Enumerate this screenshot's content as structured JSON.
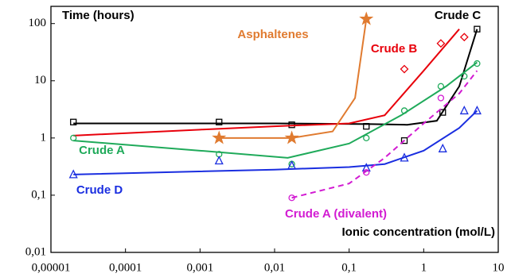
{
  "chart_data": {
    "type": "scatter",
    "y_title": "Time (hours)",
    "x_title": "Ionic concentration (mol/L)",
    "x_log": true,
    "y_log": true,
    "xlim": [
      1e-05,
      10
    ],
    "ylim": [
      0.01,
      200
    ],
    "xticks": [
      {
        "value": 1e-05,
        "label": "0,00001"
      },
      {
        "value": 0.0001,
        "label": "0,0001"
      },
      {
        "value": 0.001,
        "label": "0,001"
      },
      {
        "value": 0.01,
        "label": "0,01"
      },
      {
        "value": 0.1,
        "label": "0,1"
      },
      1,
      10
    ],
    "yticks": [
      {
        "value": 0.01,
        "label": "0,01"
      },
      {
        "value": 0.1,
        "label": "0,1"
      },
      1,
      10,
      100
    ],
    "series": [
      {
        "name": "Crude C",
        "color": "#000000",
        "marker": "square",
        "x": [
          2e-05,
          0.0018,
          0.017,
          0.17,
          0.55,
          1.8,
          5.2
        ],
        "values": [
          1.9,
          1.9,
          1.7,
          1.6,
          0.9,
          2.8,
          80
        ],
        "fit_x": [
          2e-05,
          0.01,
          0.2,
          0.6,
          1.5,
          3,
          5.2
        ],
        "fit_values": [
          1.8,
          1.8,
          1.75,
          1.7,
          2,
          8,
          80
        ]
      },
      {
        "name": "Crude B",
        "color": "#e8000b",
        "marker": "diamond",
        "x": [
          0.55,
          1.7,
          3.5
        ],
        "values": [
          16,
          45,
          58
        ],
        "fit_x": [
          2e-05,
          0.001,
          0.01,
          0.1,
          0.3,
          1,
          3
        ],
        "fit_values": [
          1.1,
          1.4,
          1.6,
          1.8,
          2.5,
          15,
          80
        ]
      },
      {
        "name": "Asphaltenes",
        "color": "#e07b30",
        "marker": "star",
        "x": [
          0.0018,
          0.017,
          0.17
        ],
        "values": [
          1,
          1,
          120
        ],
        "fit_x": [
          0.0018,
          0.017,
          0.06,
          0.12,
          0.17
        ],
        "fit_values": [
          1,
          1,
          1.3,
          5,
          120
        ]
      },
      {
        "name": "Crude A",
        "color": "#1faa5a",
        "marker": "circle",
        "x": [
          2e-05,
          0.0018,
          0.017,
          0.17,
          0.55,
          1.7,
          3.5,
          5.2
        ],
        "values": [
          1,
          0.52,
          0.35,
          1,
          3,
          8,
          12,
          20
        ],
        "fit_x": [
          2e-05,
          0.001,
          0.015,
          0.1,
          0.5,
          2,
          5.2
        ],
        "fit_values": [
          0.9,
          0.6,
          0.45,
          0.8,
          2.5,
          8,
          21
        ]
      },
      {
        "name": "Crude D",
        "color": "#1a2ee0",
        "marker": "triangle",
        "x": [
          2e-05,
          0.0018,
          0.017,
          0.17,
          0.55,
          1.8,
          3.5,
          5.2
        ],
        "values": [
          0.23,
          0.4,
          0.33,
          0.3,
          0.45,
          0.65,
          3,
          3
        ],
        "fit_x": [
          2e-05,
          0.01,
          0.1,
          0.3,
          1,
          3,
          5.2
        ],
        "fit_values": [
          0.23,
          0.28,
          0.31,
          0.35,
          0.6,
          1.5,
          3
        ]
      },
      {
        "name": "Crude A (divalent)",
        "color": "#d21bd2",
        "marker": "circle",
        "dashed": true,
        "x": [
          0.017,
          0.17,
          1.7
        ],
        "values": [
          0.09,
          0.25,
          5
        ],
        "fit_x": [
          0.017,
          0.1,
          0.3,
          1,
          3,
          5.2
        ],
        "fit_values": [
          0.09,
          0.16,
          0.45,
          1.8,
          6,
          15
        ]
      }
    ]
  }
}
